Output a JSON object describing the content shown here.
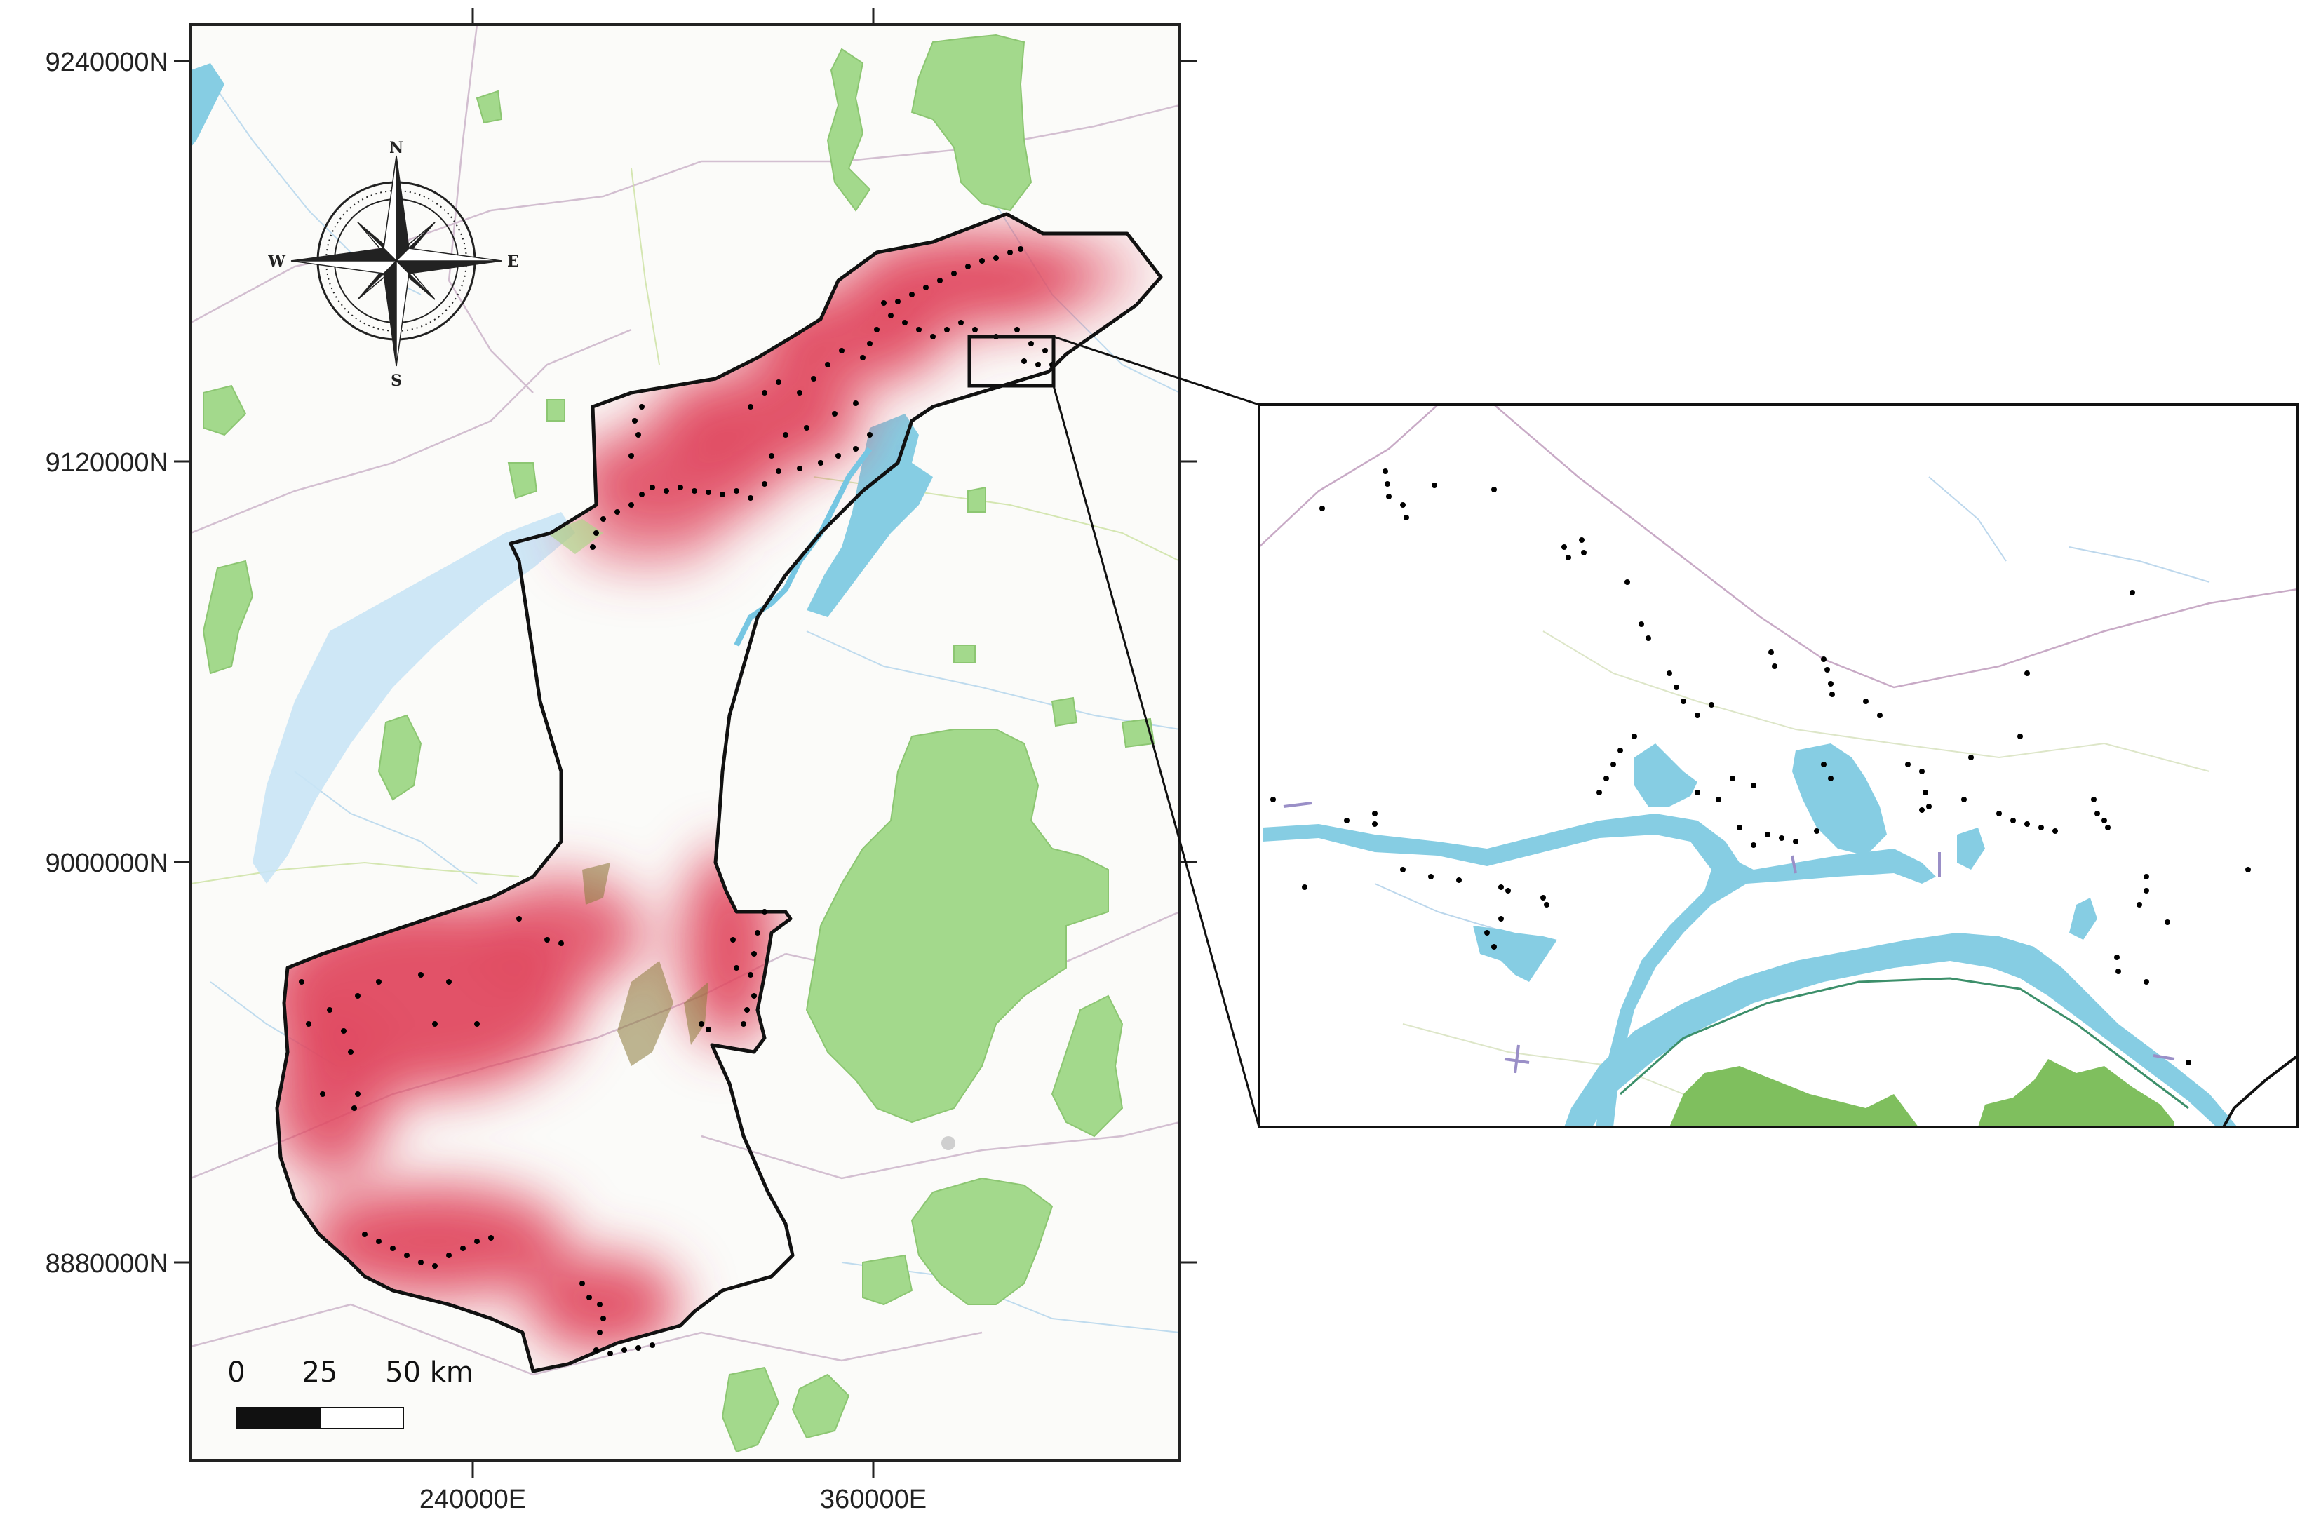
{
  "axes": {
    "y_labels": [
      "9240000N",
      "9120000N",
      "9000000N",
      "8880000N"
    ],
    "x_labels": [
      "240000E",
      "360000E"
    ]
  },
  "compass": {
    "n": "N",
    "e": "E",
    "s": "S",
    "w": "W",
    "icon": "compass-rose-icon"
  },
  "scale_bar": {
    "labels": [
      "0",
      "25",
      "50 km"
    ]
  },
  "colors": {
    "heat": "#e0485f",
    "park_green": "#9fd98a",
    "water_blue": "#86cde3",
    "boundary": "#111111",
    "river_blue": "#76c6e2"
  }
}
